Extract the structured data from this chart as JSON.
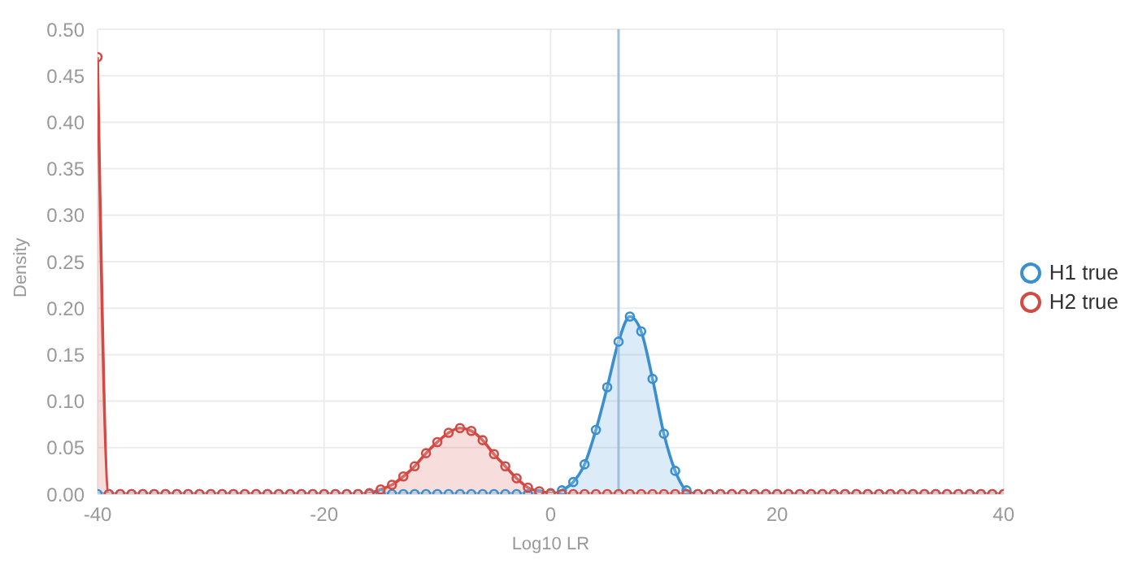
{
  "chart_data": {
    "type": "area",
    "xlabel": "Log10 LR",
    "ylabel": "Density",
    "x": [
      -40,
      -39,
      -38,
      -37,
      -36,
      -35,
      -34,
      -33,
      -32,
      -31,
      -30,
      -29,
      -28,
      -27,
      -26,
      -25,
      -24,
      -23,
      -22,
      -21,
      -20,
      -19,
      -18,
      -17,
      -16,
      -15,
      -14,
      -13,
      -12,
      -11,
      -10,
      -9,
      -8,
      -7,
      -6,
      -5,
      -4,
      -3,
      -2,
      -1,
      0,
      1,
      2,
      3,
      4,
      5,
      6,
      7,
      8,
      9,
      10,
      11,
      12,
      13,
      14,
      15,
      16,
      17,
      18,
      19,
      20,
      21,
      22,
      23,
      24,
      25,
      26,
      27,
      28,
      29,
      30,
      31,
      32,
      33,
      34,
      35,
      36,
      37,
      38,
      39,
      40
    ],
    "series": [
      {
        "name": "H1 true",
        "color": "#3a8fd0",
        "values": [
          0,
          0,
          0,
          0,
          0,
          0,
          0,
          0,
          0,
          0,
          0,
          0,
          0,
          0,
          0,
          0,
          0,
          0,
          0,
          0,
          0,
          0,
          0,
          0,
          0,
          0,
          0,
          0,
          0,
          0,
          0,
          0,
          0,
          0,
          0,
          0,
          0,
          0,
          0,
          0,
          0,
          0.004,
          0.013,
          0.032,
          0.069,
          0.115,
          0.164,
          0.191,
          0.175,
          0.124,
          0.065,
          0.025,
          0.004,
          0,
          0,
          0,
          0,
          0,
          0,
          0,
          0,
          0,
          0,
          0,
          0,
          0,
          0,
          0,
          0,
          0,
          0,
          0,
          0,
          0,
          0,
          0,
          0,
          0,
          0,
          0,
          0
        ]
      },
      {
        "name": "H2 true",
        "color": "#d24a43",
        "values": [
          0.47,
          0,
          0,
          0,
          0,
          0,
          0,
          0,
          0,
          0,
          0,
          0,
          0,
          0,
          0,
          0,
          0,
          0,
          0,
          0,
          0,
          0,
          0,
          0,
          0.001,
          0.005,
          0.01,
          0.019,
          0.03,
          0.044,
          0.056,
          0.066,
          0.071,
          0.068,
          0.058,
          0.043,
          0.03,
          0.017,
          0.007,
          0.003,
          0.001,
          0,
          0,
          0,
          0,
          0,
          0,
          0,
          0,
          0,
          0,
          0,
          0,
          0,
          0,
          0,
          0,
          0,
          0,
          0,
          0,
          0,
          0,
          0,
          0,
          0,
          0,
          0,
          0,
          0,
          0,
          0,
          0,
          0,
          0,
          0,
          0,
          0,
          0,
          0,
          0
        ]
      }
    ],
    "xlim": [
      -40,
      40
    ],
    "xticks": [
      -40,
      -20,
      0,
      20,
      40
    ],
    "ylim": [
      0,
      0.5
    ],
    "yticks": [
      {
        "value": 0,
        "label": "0.00"
      },
      {
        "value": 0.05,
        "label": "0.05"
      },
      {
        "value": 0.1,
        "label": "0.10"
      },
      {
        "value": 0.15,
        "label": "0.15"
      },
      {
        "value": 0.2,
        "label": "0.20"
      },
      {
        "value": 0.25,
        "label": "0.25"
      },
      {
        "value": 0.3,
        "label": "0.30"
      },
      {
        "value": 0.35,
        "label": "0.35"
      },
      {
        "value": 0.4,
        "label": "0.40"
      },
      {
        "value": 0.45,
        "label": "0.45"
      },
      {
        "value": 0.5,
        "label": "0.50"
      }
    ],
    "ref_lines": [
      {
        "axis": "x",
        "value": 6,
        "color": "#9fbfdc"
      }
    ],
    "grid": true,
    "legend": "right",
    "marker": "circle"
  }
}
